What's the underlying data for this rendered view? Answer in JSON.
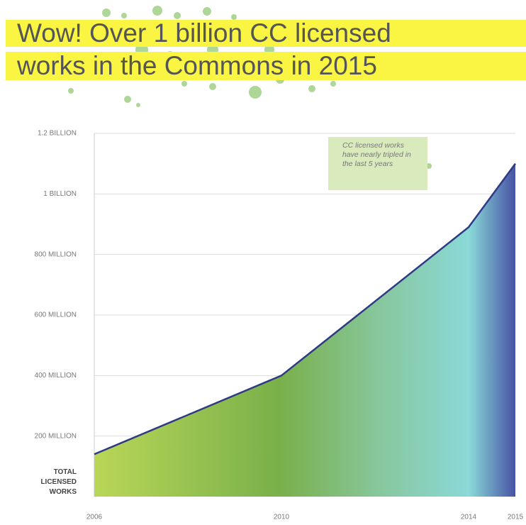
{
  "chart_data": {
    "type": "area",
    "title": [
      "Wow! Over 1 billion CC licensed",
      "works in the Commons in 2015"
    ],
    "y_label": [
      "TOTAL",
      "LICENSED",
      "WORKS"
    ],
    "annotation": "CC licensed works have nearly tripled in the last 5 years",
    "x": [
      2006,
      2010,
      2014,
      2015
    ],
    "series": [
      {
        "color": "#2f3a85",
        "values": [
          140,
          400,
          890,
          1100
        ]
      }
    ],
    "xlim": [
      2006,
      2015
    ],
    "xticks": [
      2006,
      2010,
      2014,
      2015
    ],
    "ylim": [
      0,
      1200
    ],
    "yticks": [
      {
        "value": 200,
        "label": "200 MILLION"
      },
      {
        "value": 400,
        "label": "400 MILLION"
      },
      {
        "value": 600,
        "label": "600 MILLION"
      },
      {
        "value": 800,
        "label": "800 MILLION"
      },
      {
        "value": 1000,
        "label": "1 BILLION"
      },
      {
        "value": 1200,
        "label": "1.2 BILLION"
      }
    ],
    "grid": true
  }
}
